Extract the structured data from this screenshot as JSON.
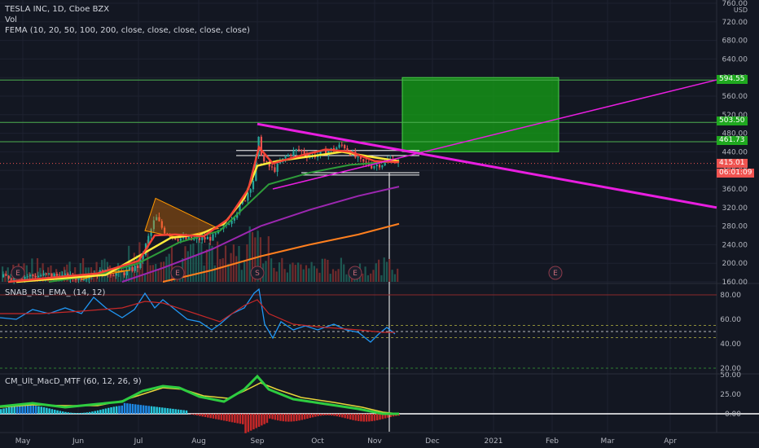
{
  "legend": {
    "symbol": "TESLA INC, 1D, Cboe BZX",
    "vol": "Vol",
    "fema": "FEMA (10, 20, 50, 100, 200, close, close, close, close, close)",
    "rsi": "SNAB_RSI_EMA_ (14, 12)",
    "macd": "CM_Ult_MacD_MTF (60, 12, 26, 9)"
  },
  "price_axis": {
    "currency": "USD",
    "ticks": [
      "760.00",
      "720.00",
      "680.00",
      "640.00",
      "600.00",
      "560.00",
      "520.00",
      "480.00",
      "440.00",
      "400.00",
      "360.00",
      "320.00",
      "280.00",
      "240.00",
      "200.00",
      "160.00"
    ],
    "tags": {
      "level1": "594.55",
      "level2": "503.50",
      "level3": "461.73",
      "last_price": "415.01",
      "countdown": "06:01:09"
    }
  },
  "rsi_axis": {
    "ticks": [
      "80.00",
      "60.00",
      "40.00",
      "20.00"
    ]
  },
  "macd_axis": {
    "ticks": [
      "50.00",
      "25.00",
      "0.00"
    ]
  },
  "time_axis": {
    "labels": [
      "May",
      "Jun",
      "Jul",
      "Aug",
      "Sep",
      "Oct",
      "Nov",
      "Dec",
      "2021",
      "Feb",
      "Mar",
      "Apr"
    ]
  },
  "events": {
    "earnings": "E",
    "split": "S"
  },
  "colors": {
    "background": "#131722",
    "up": "#26a69a",
    "down": "#ef5350",
    "levels": "#4caf50",
    "target_box": "#1fa81f",
    "trendline": "#e91ee0",
    "ema10": "#f44336",
    "ema20": "#ffeb3b",
    "ema50": "#2e9c3a",
    "ema100": "#9c27b0",
    "ema200": "#ff7f1e",
    "rsi": "#2196f3",
    "rsi_ema": "#c62828"
  },
  "chart_data": [
    {
      "type": "line",
      "title": "TESLA INC, 1D, Cboe BZX",
      "ylabel": "USD",
      "ylim": [
        160,
        760
      ],
      "x": [
        "May",
        "Jun",
        "Jul",
        "Aug",
        "Sep",
        "Oct",
        "Nov"
      ],
      "series": [
        {
          "name": "close",
          "values": [
            165,
            180,
            235,
            300,
            440,
            420,
            415
          ]
        }
      ],
      "horizontal_levels": [
        594.55,
        503.5,
        461.73,
        440,
        415.01
      ],
      "last_price": 415.01
    },
    {
      "type": "line",
      "title": "SNAB_RSI_EMA_ (14, 12)",
      "ylim": [
        10,
        95
      ],
      "reference_lines": [
        80,
        55,
        50,
        45,
        20
      ],
      "series": [
        {
          "name": "RSI",
          "values": [
            70,
            65,
            85,
            65,
            60,
            55,
            50
          ]
        },
        {
          "name": "EMA",
          "values": [
            68,
            66,
            80,
            68,
            58,
            52,
            48
          ]
        }
      ]
    },
    {
      "type": "line",
      "title": "CM_Ult_MacD_MTF (60, 12, 26, 9)",
      "ylim": [
        -25,
        50
      ],
      "series": [
        {
          "name": "MACD",
          "values": [
            10,
            8,
            25,
            8,
            40,
            12,
            0
          ]
        },
        {
          "name": "Signal",
          "values": [
            9,
            10,
            22,
            12,
            35,
            15,
            2
          ]
        }
      ]
    }
  ]
}
